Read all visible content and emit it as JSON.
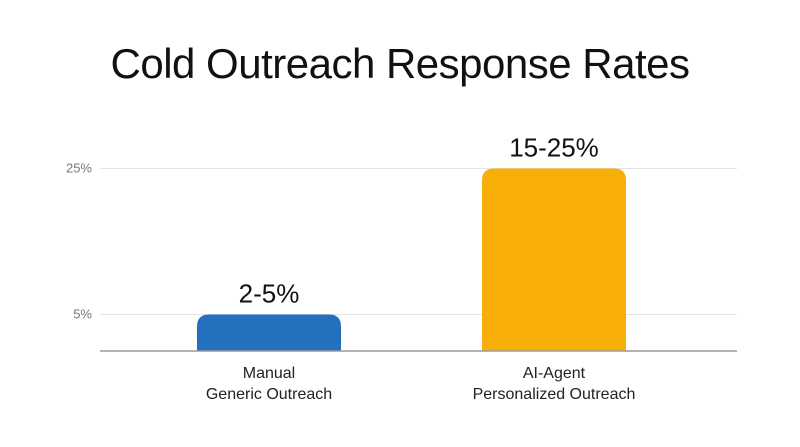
{
  "chart_data": {
    "type": "bar",
    "title": "Cold Outreach Response Rates",
    "xlabel": "",
    "ylabel": "",
    "ylim": [
      0,
      25
    ],
    "yticks": [
      {
        "value": 5,
        "label": "5%"
      },
      {
        "value": 25,
        "label": "25%"
      }
    ],
    "grid": true,
    "categories": [
      [
        "Manual",
        "Generic Outreach"
      ],
      [
        "AI-Agent",
        "Personalized Outreach"
      ]
    ],
    "values": [
      5,
      25
    ],
    "data_labels": [
      "2-5%",
      "15-25%"
    ],
    "colors": [
      "#2370BE",
      "#F7AE08"
    ]
  }
}
